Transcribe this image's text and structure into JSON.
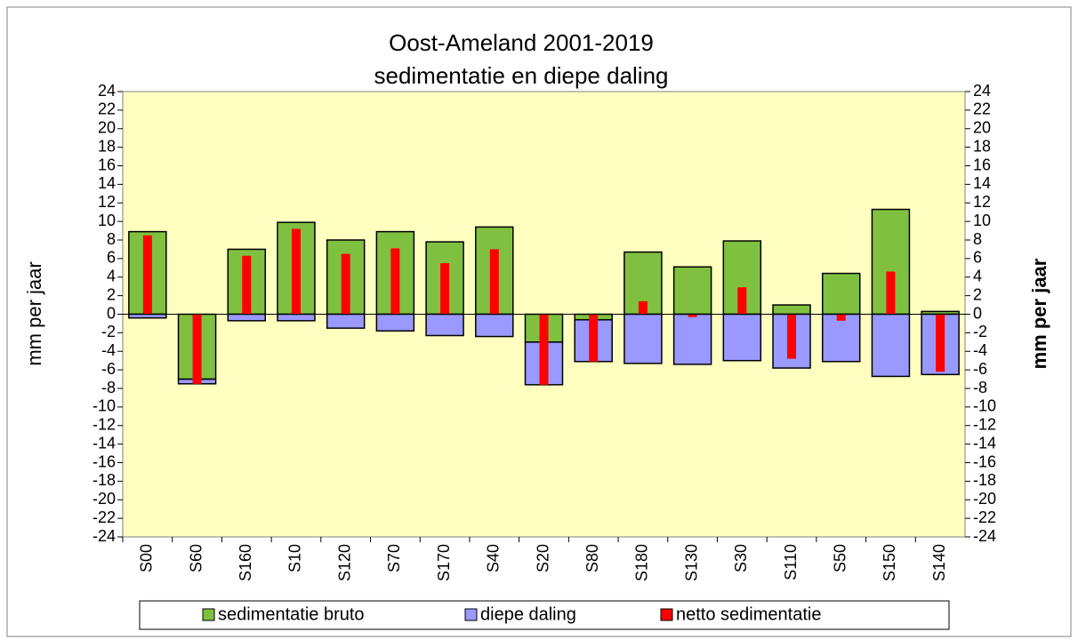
{
  "chart_data": {
    "type": "bar",
    "title": "Oost-Ameland 2001-2019",
    "subtitle": "sedimentatie en diepe daling",
    "y_label": "mm per jaar",
    "y2_label": "mm per jaar",
    "categories": [
      "S00",
      "S60",
      "S160",
      "S10",
      "S120",
      "S70",
      "S170",
      "S40",
      "S20",
      "S80",
      "S180",
      "S130",
      "S30",
      "S110",
      "S50",
      "S150",
      "S140"
    ],
    "series": [
      {
        "name": "sedimentatie bruto",
        "color": "#80c040",
        "stacked": true,
        "values": [
          8.9,
          -7.0,
          7.0,
          9.9,
          8.0,
          8.9,
          7.8,
          9.4,
          -3.0,
          -0.6,
          6.7,
          5.1,
          7.9,
          1.0,
          4.4,
          11.3,
          0.3
        ]
      },
      {
        "name": "diepe daling",
        "color": "#9999ff",
        "stacked": true,
        "values": [
          -0.4,
          -0.5,
          -0.7,
          -0.7,
          -1.5,
          -1.8,
          -2.3,
          -2.4,
          -4.6,
          -4.5,
          -5.3,
          -5.4,
          -5.0,
          -5.8,
          -5.1,
          -6.7,
          -6.5
        ]
      },
      {
        "name": "netto sedimentatie",
        "color": "#ff0000",
        "axis": "y2",
        "values": [
          8.5,
          -7.5,
          6.3,
          9.2,
          6.5,
          7.1,
          5.5,
          7.0,
          -7.6,
          -5.1,
          1.4,
          -0.3,
          2.9,
          -4.8,
          -0.7,
          4.6,
          -6.2
        ]
      }
    ],
    "ylim": [
      -24,
      24
    ],
    "yticks": [
      -24,
      -22,
      -20,
      -18,
      -16,
      -14,
      -12,
      -10,
      -8,
      -6,
      -4,
      -2,
      0,
      2,
      4,
      6,
      8,
      10,
      12,
      14,
      16,
      18,
      20,
      22,
      24
    ],
    "y2lim": [
      -24,
      24
    ],
    "y2ticks": [
      -24,
      -22,
      -20,
      -18,
      -16,
      -14,
      -12,
      -10,
      -8,
      -6,
      -4,
      -2,
      0,
      2,
      4,
      6,
      8,
      10,
      12,
      14,
      16,
      18,
      20,
      22,
      24
    ],
    "plot_background": "#ffffc0",
    "legend": "bottom"
  }
}
